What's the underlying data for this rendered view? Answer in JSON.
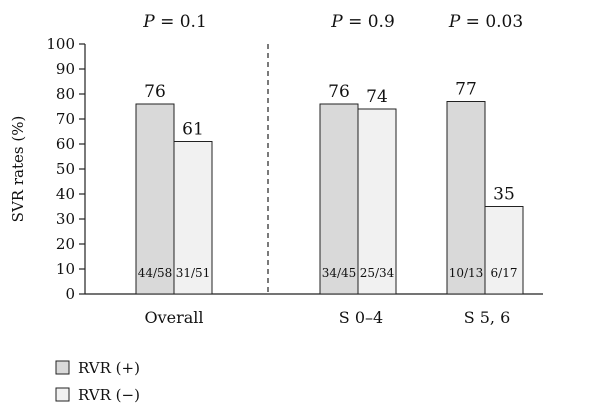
{
  "chart_data": {
    "type": "bar",
    "ylabel": "SVR rates (%)",
    "ylim": [
      0,
      100
    ],
    "yticks": [
      "0",
      "10",
      "20",
      "30",
      "40",
      "50",
      "60",
      "70",
      "80",
      "90",
      "100"
    ],
    "categories": [
      "Overall",
      "S 0–4",
      "S 5, 6"
    ],
    "series": [
      {
        "name": "RVR (+)",
        "color": "#d9d9d9",
        "values": [
          76,
          76,
          77
        ],
        "value_labels": [
          "76",
          "76",
          "77"
        ],
        "fractions": [
          "44/58",
          "34/45",
          "10/13"
        ]
      },
      {
        "name": "RVR (−)",
        "color": "#f1f1f1",
        "values": [
          61,
          74,
          35
        ],
        "value_labels": [
          "61",
          "74",
          "35"
        ],
        "fractions": [
          "31/51",
          "25/34",
          "6/17"
        ]
      }
    ],
    "p_values": [
      {
        "italic": "P",
        "rest": " = 0.1"
      },
      {
        "italic": "P",
        "rest": " = 0.9"
      },
      {
        "italic": "P",
        "rest": " = 0.03"
      }
    ],
    "separator_after_category": 0,
    "grid": false,
    "legend_position": "bottom-left"
  }
}
